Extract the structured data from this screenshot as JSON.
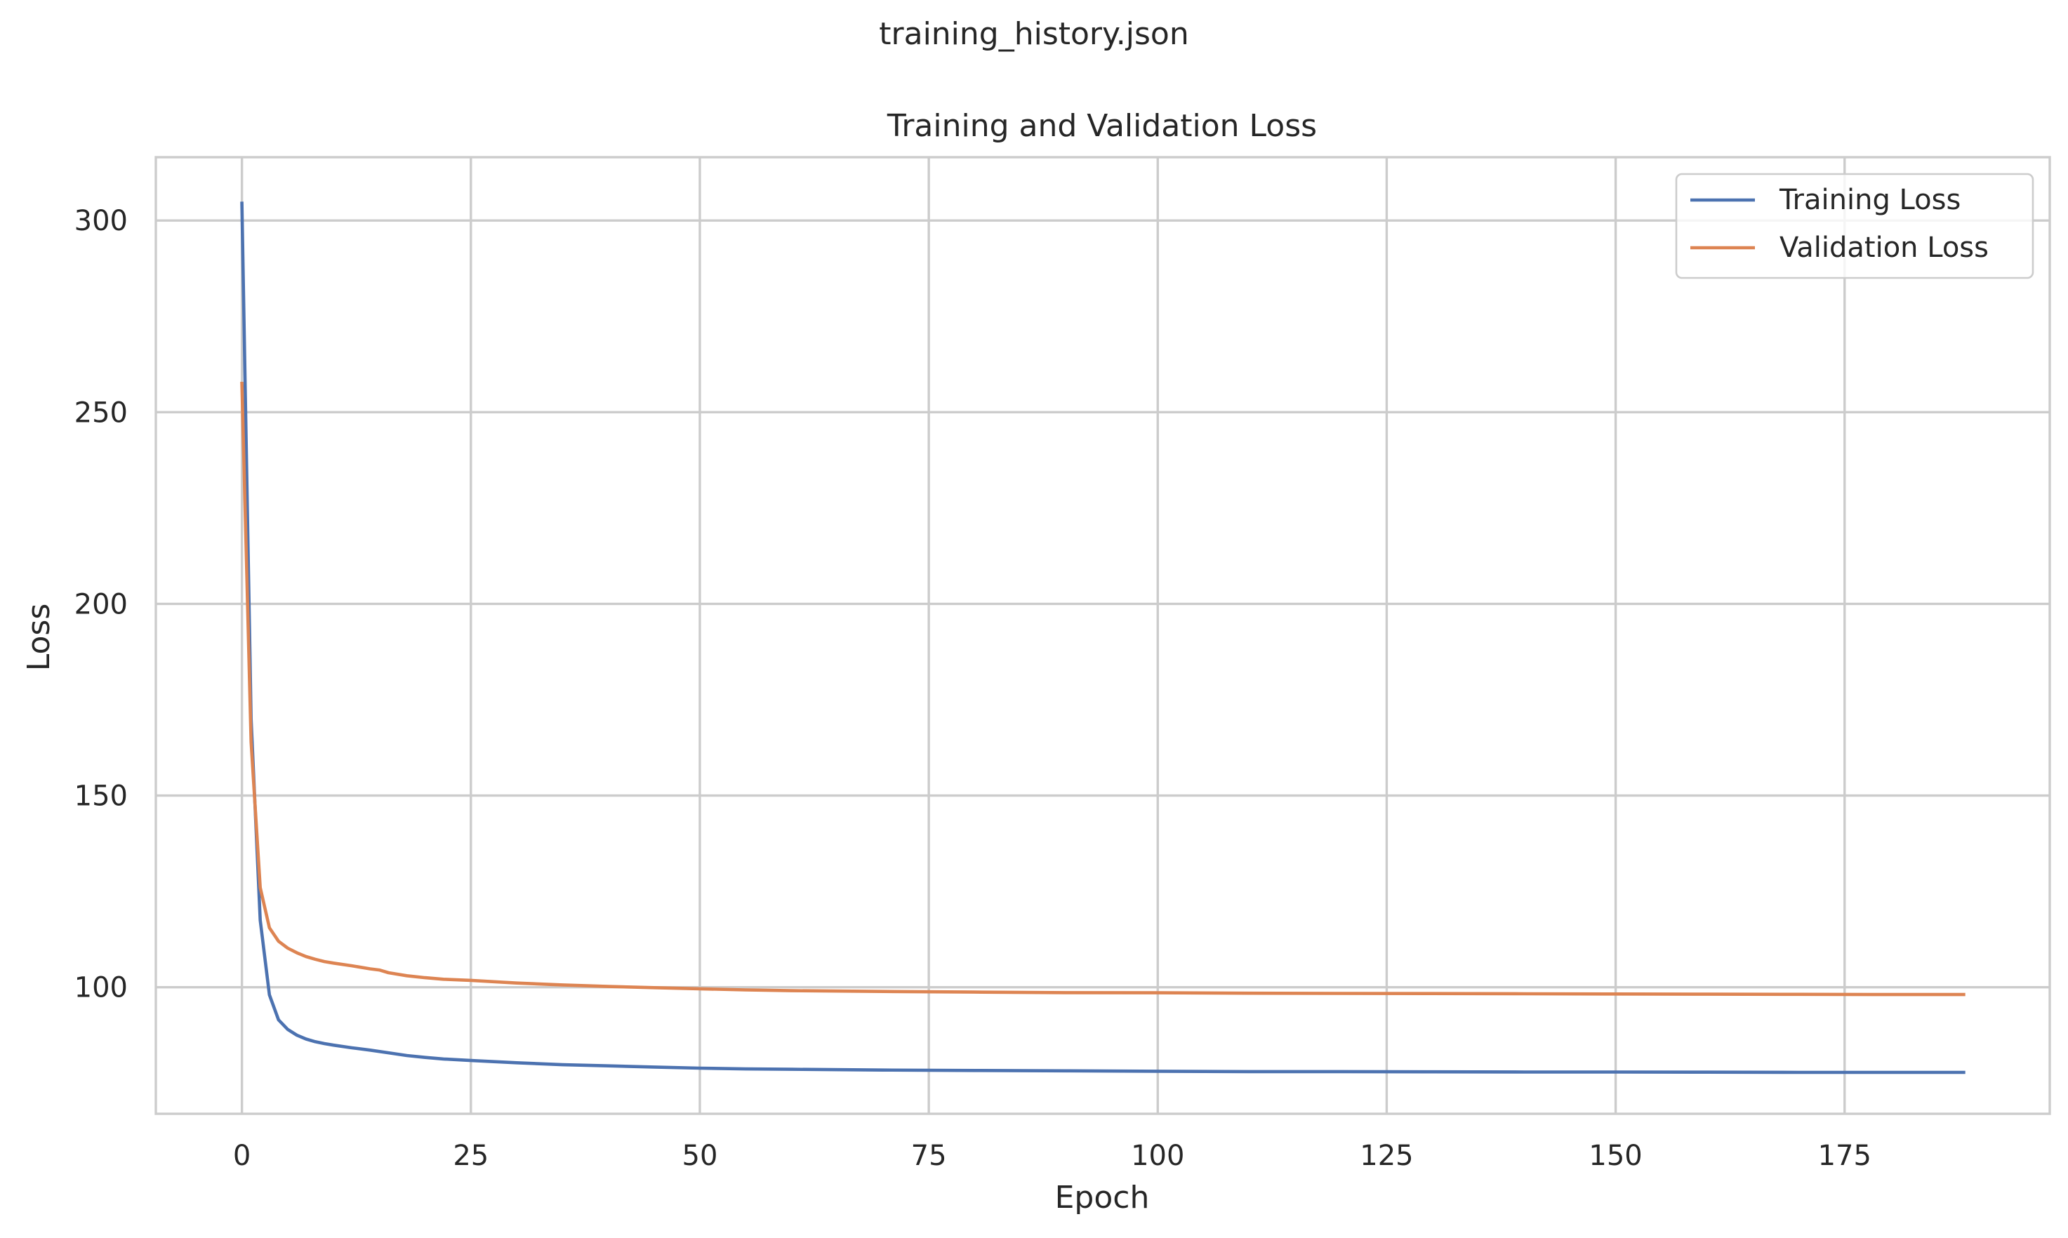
{
  "figure": {
    "suptitle": "training_history.json"
  },
  "chart_data": {
    "type": "line",
    "title": "Training and Validation Loss",
    "xlabel": "Epoch",
    "ylabel": "Loss",
    "xlim": [
      -9.4,
      197.4
    ],
    "ylim": [
      67,
      316.5
    ],
    "xticks": [
      0,
      25,
      50,
      75,
      100,
      125,
      150,
      175
    ],
    "yticks": [
      100,
      150,
      200,
      250,
      300
    ],
    "grid": true,
    "legend_position": "top-right",
    "series": [
      {
        "name": "Training Loss",
        "color": "#4c72b0",
        "x": [
          0,
          1,
          2,
          3,
          4,
          5,
          6,
          7,
          8,
          9,
          10,
          12,
          14,
          16,
          18,
          20,
          22,
          25,
          30,
          35,
          40,
          45,
          50,
          55,
          60,
          70,
          80,
          90,
          100,
          110,
          120,
          130,
          140,
          150,
          160,
          170,
          180,
          188
        ],
        "y": [
          304.5,
          170,
          117.5,
          98,
          91.5,
          89,
          87.5,
          86.5,
          85.8,
          85.3,
          84.9,
          84.2,
          83.6,
          82.9,
          82.2,
          81.7,
          81.3,
          80.9,
          80.3,
          79.8,
          79.5,
          79.2,
          78.9,
          78.7,
          78.6,
          78.4,
          78.3,
          78.2,
          78.1,
          78.0,
          78.0,
          77.95,
          77.9,
          77.9,
          77.85,
          77.8,
          77.8,
          77.8
        ]
      },
      {
        "name": "Validation Loss",
        "color": "#dd8452",
        "x": [
          0,
          1,
          2,
          3,
          4,
          5,
          6,
          7,
          8,
          9,
          10,
          12,
          14,
          15,
          16,
          18,
          20,
          22,
          25,
          30,
          35,
          40,
          45,
          50,
          55,
          60,
          70,
          80,
          90,
          100,
          110,
          120,
          130,
          140,
          150,
          160,
          170,
          180,
          188
        ],
        "y": [
          257.5,
          164,
          126,
          115.5,
          112,
          110.2,
          109,
          108,
          107.3,
          106.7,
          106.3,
          105.6,
          104.8,
          104.5,
          103.8,
          103.0,
          102.5,
          102.1,
          101.8,
          101.1,
          100.6,
          100.2,
          99.9,
          99.6,
          99.3,
          99.1,
          98.9,
          98.75,
          98.6,
          98.55,
          98.45,
          98.4,
          98.35,
          98.3,
          98.25,
          98.2,
          98.15,
          98.1,
          98.1
        ]
      }
    ]
  }
}
